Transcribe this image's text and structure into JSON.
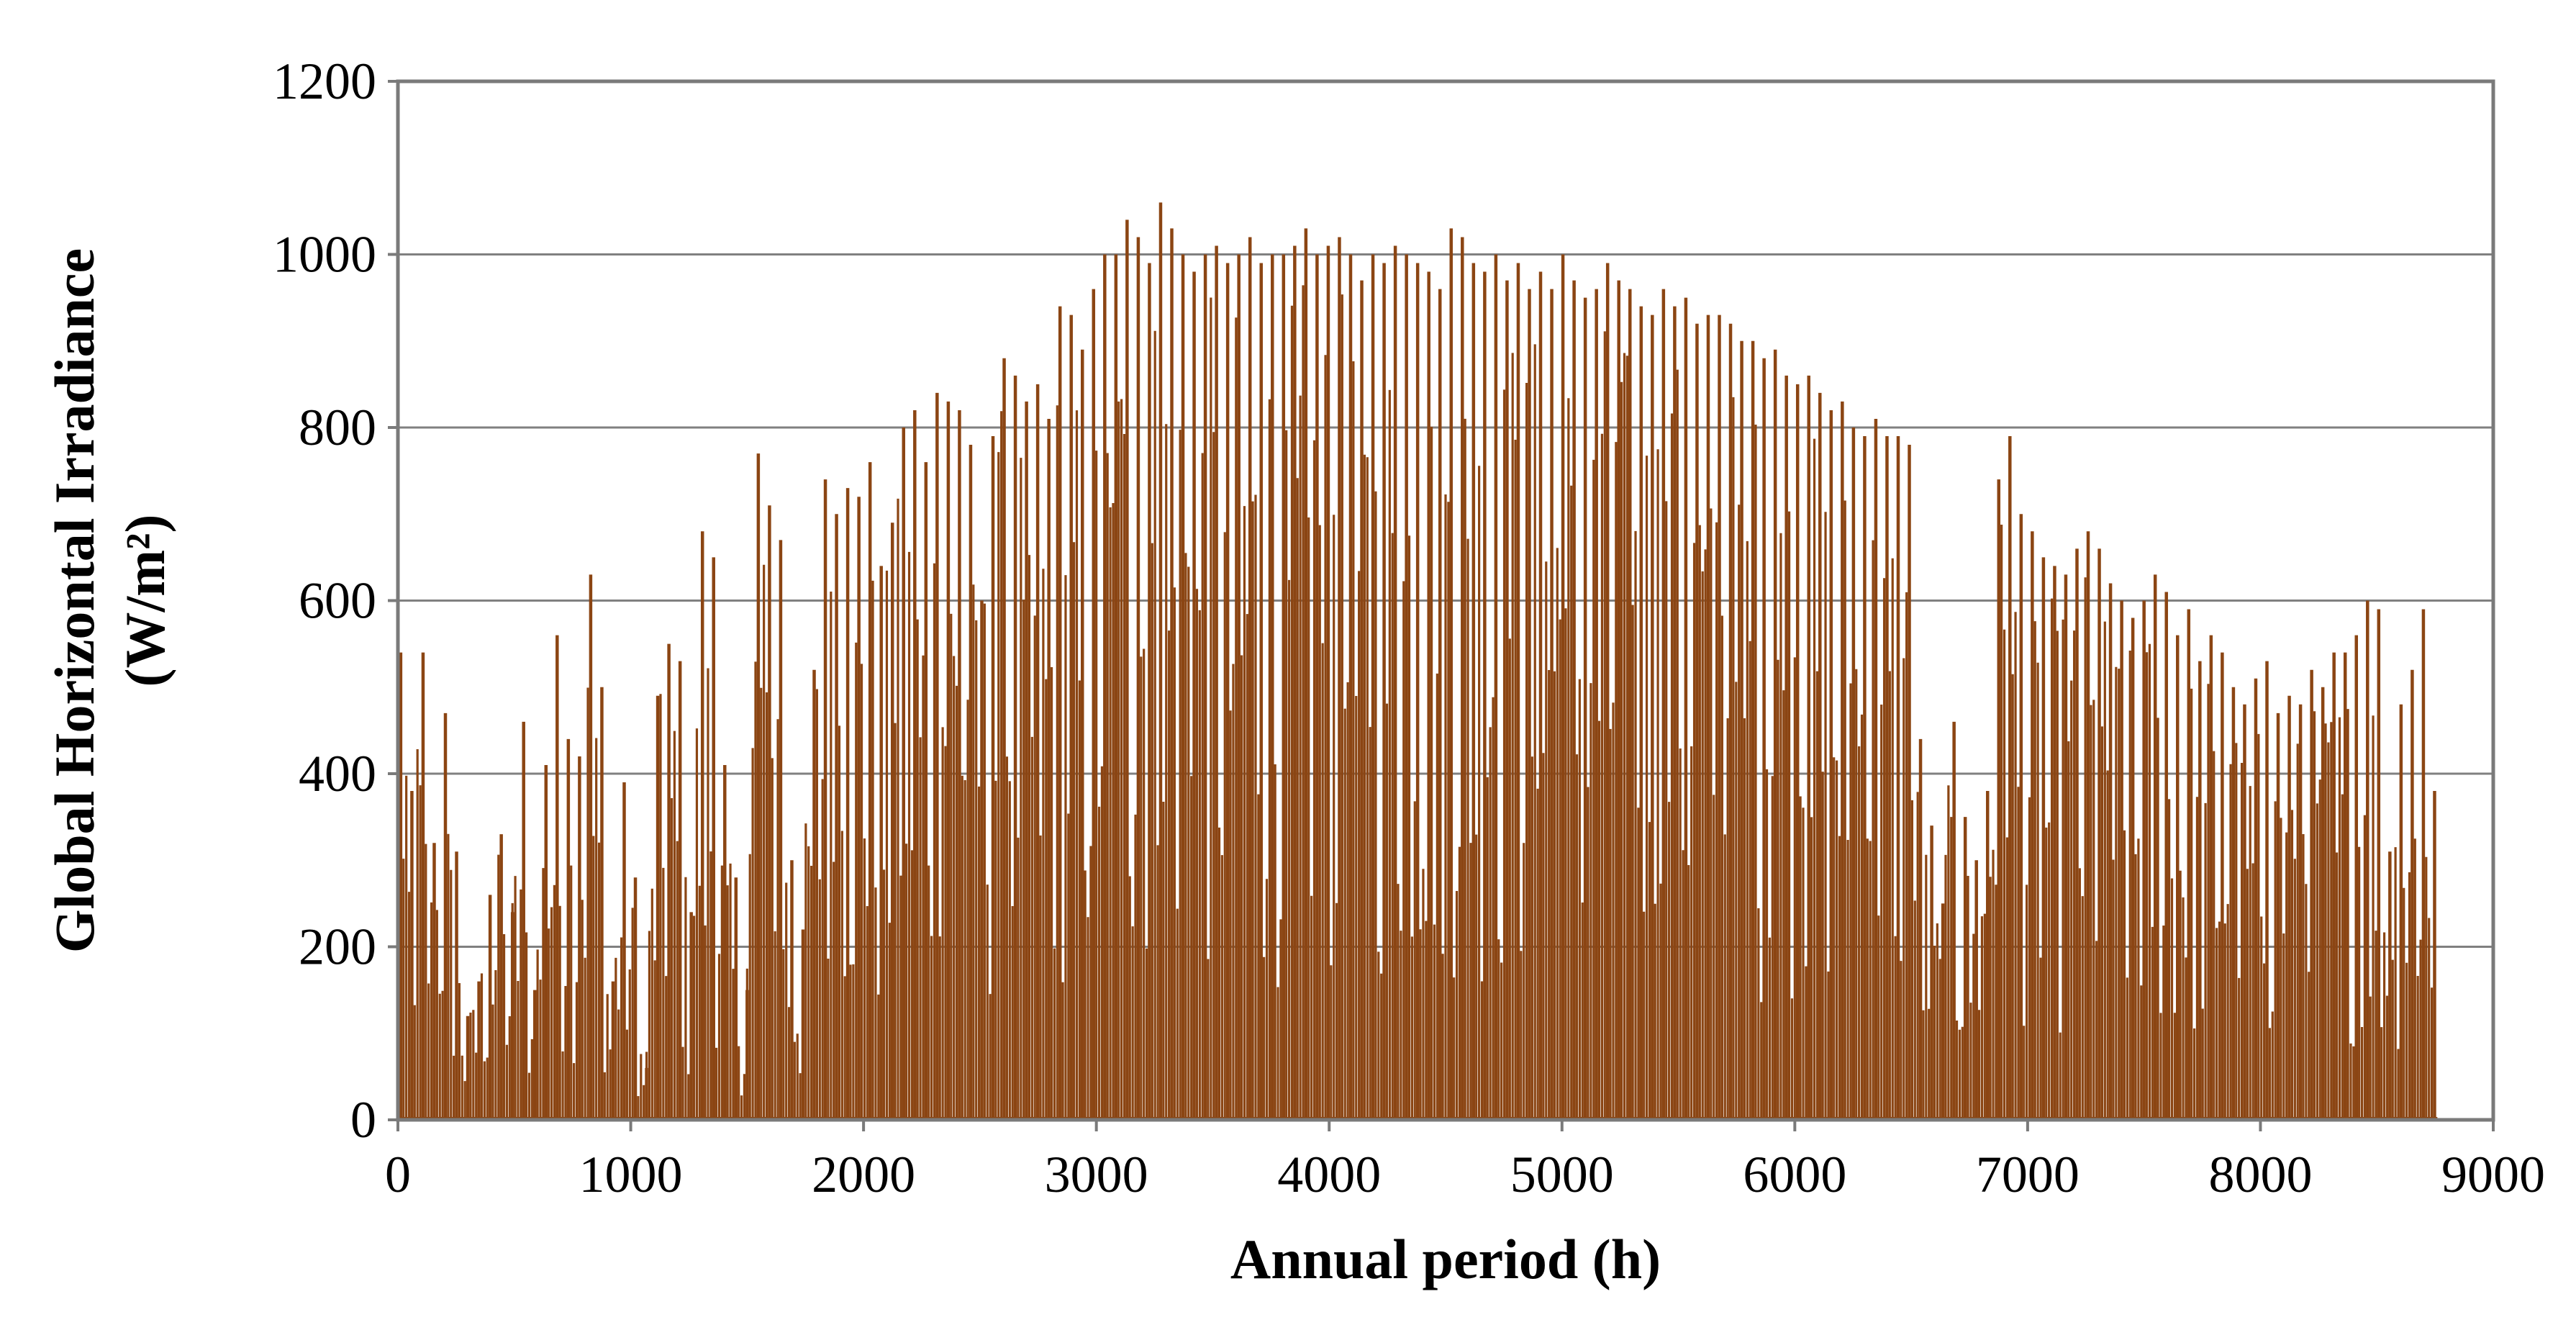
{
  "chart_data": {
    "type": "bar",
    "title": "",
    "xlabel": "Annual period (h)",
    "ylabel": "Global Horizontal Irradiance",
    "ylabel_unit": "(W/m²)",
    "xlim": [
      0,
      9000
    ],
    "ylim": [
      0,
      1200
    ],
    "x_ticks": [
      "0",
      "1000",
      "2000",
      "3000",
      "4000",
      "5000",
      "6000",
      "7000",
      "8000",
      "9000"
    ],
    "y_ticks": [
      "0",
      "200",
      "400",
      "600",
      "800",
      "1000",
      "1200"
    ],
    "grid": "horizontal",
    "bar_color": "#8B4513",
    "data_extent_hours": [
      0,
      8760
    ],
    "series": [
      {
        "name": "Global Horizontal Irradiance",
        "description": "Hourly series; each daily spike peaks at the value below. Values estimated from the figure (daily peak envelope sampled every ~48 h).",
        "peak_hours": [
          0,
          48,
          96,
          144,
          192,
          240,
          288,
          336,
          384,
          432,
          480,
          528,
          576,
          624,
          672,
          720,
          768,
          816,
          864,
          912,
          960,
          1008,
          1056,
          1104,
          1152,
          1200,
          1248,
          1296,
          1344,
          1392,
          1440,
          1488,
          1536,
          1584,
          1632,
          1680,
          1728,
          1776,
          1824,
          1872,
          1920,
          1968,
          2016,
          2064,
          2112,
          2160,
          2208,
          2256,
          2304,
          2352,
          2400,
          2448,
          2496,
          2544,
          2592,
          2640,
          2688,
          2736,
          2784,
          2832,
          2880,
          2928,
          2976,
          3024,
          3072,
          3120,
          3168,
          3216,
          3264,
          3312,
          3360,
          3408,
          3456,
          3504,
          3552,
          3600,
          3648,
          3696,
          3744,
          3792,
          3840,
          3888,
          3936,
          3984,
          4032,
          4080,
          4128,
          4176,
          4224,
          4272,
          4320,
          4368,
          4416,
          4464,
          4512,
          4560,
          4608,
          4656,
          4704,
          4752,
          4800,
          4848,
          4896,
          4944,
          4992,
          5040,
          5088,
          5136,
          5184,
          5232,
          5280,
          5328,
          5376,
          5424,
          5472,
          5520,
          5568,
          5616,
          5664,
          5712,
          5760,
          5808,
          5856,
          5904,
          5952,
          6000,
          6048,
          6096,
          6144,
          6192,
          6240,
          6288,
          6336,
          6384,
          6432,
          6480,
          6528,
          6576,
          6624,
          6672,
          6720,
          6768,
          6816,
          6864,
          6912,
          6960,
          7008,
          7056,
          7104,
          7152,
          7200,
          7248,
          7296,
          7344,
          7392,
          7440,
          7488,
          7536,
          7584,
          7632,
          7680,
          7728,
          7776,
          7824,
          7872,
          7920,
          7968,
          8016,
          8064,
          8112,
          8160,
          8208,
          8256,
          8304,
          8352,
          8400,
          8448,
          8496,
          8544,
          8592,
          8640,
          8688,
          8736
        ],
        "daily_peak_wm2": [
          540,
          380,
          540,
          320,
          470,
          310,
          120,
          160,
          260,
          330,
          240,
          460,
          150,
          410,
          560,
          440,
          420,
          630,
          500,
          160,
          390,
          280,
          60,
          490,
          550,
          530,
          240,
          680,
          650,
          410,
          280,
          150,
          770,
          710,
          670,
          300,
          220,
          520,
          740,
          700,
          730,
          720,
          760,
          640,
          690,
          800,
          820,
          760,
          840,
          830,
          820,
          780,
          600,
          790,
          880,
          860,
          830,
          850,
          810,
          940,
          930,
          890,
          960,
          1000,
          1000,
          1040,
          1020,
          990,
          1060,
          1030,
          1000,
          980,
          1000,
          1010,
          990,
          1000,
          1020,
          990,
          1000,
          1000,
          1010,
          1030,
          1000,
          1010,
          1020,
          1000,
          970,
          1000,
          990,
          1010,
          1000,
          990,
          980,
          960,
          1030,
          1020,
          990,
          980,
          1000,
          970,
          990,
          960,
          980,
          960,
          1000,
          970,
          950,
          960,
          990,
          970,
          960,
          940,
          930,
          960,
          940,
          950,
          920,
          930,
          930,
          920,
          900,
          900,
          880,
          890,
          860,
          850,
          860,
          840,
          820,
          830,
          800,
          790,
          810,
          790,
          790,
          780,
          440,
          340,
          250,
          460,
          350,
          300,
          380,
          740,
          790,
          700,
          680,
          650,
          640,
          630,
          660,
          680,
          660,
          620,
          600,
          580,
          600,
          630,
          610,
          560,
          590,
          530,
          560,
          540,
          500,
          480,
          510,
          530,
          470,
          490,
          480,
          520,
          500,
          540,
          540,
          560,
          600,
          590,
          310,
          480,
          520,
          590,
          380
        ]
      }
    ]
  }
}
